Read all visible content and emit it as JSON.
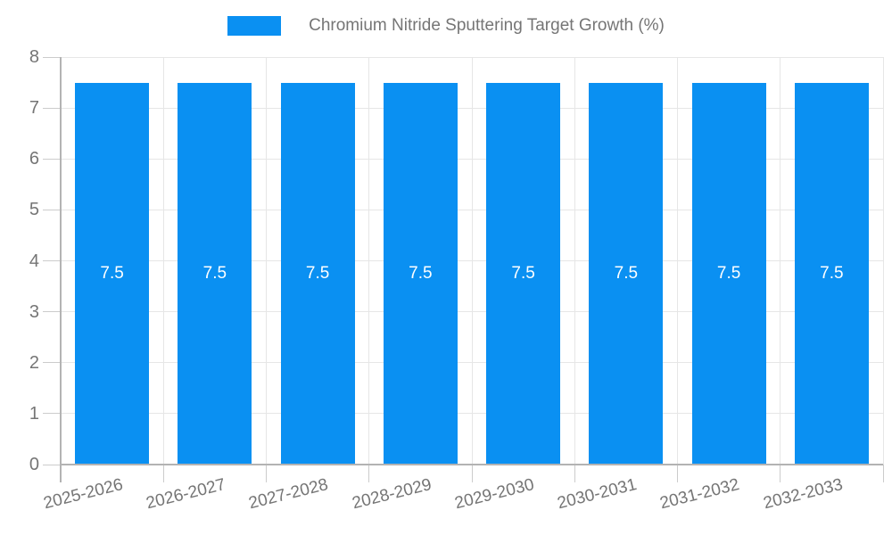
{
  "legend": {
    "label": "Chromium Nitride Sputtering Target Growth (%)",
    "swatch_color": "#0a90f2"
  },
  "chart_data": {
    "type": "bar",
    "title": "Chromium Nitride Sputtering Target Growth (%)",
    "categories": [
      "2025-2026",
      "2026-2027",
      "2027-2028",
      "2028-2029",
      "2029-2030",
      "2030-2031",
      "2031-2032",
      "2032-2033"
    ],
    "values": [
      7.5,
      7.5,
      7.5,
      7.5,
      7.5,
      7.5,
      7.5,
      7.5
    ],
    "bar_labels": [
      "7.5",
      "7.5",
      "7.5",
      "7.5",
      "7.5",
      "7.5",
      "7.5",
      "7.5"
    ],
    "xlabel": "",
    "ylabel": "",
    "ylim": [
      0,
      8
    ],
    "yticks": [
      0,
      1,
      2,
      3,
      4,
      5,
      6,
      7,
      8
    ],
    "grid": true,
    "legend_position": "top",
    "bar_color": "#0a90f2",
    "bar_label_color": "#ffffff",
    "axis_text_color": "#757575",
    "gridline_color": "#e6e6e6",
    "tick_color": "#cccccc",
    "axis_line_color": "#b3b3b3"
  }
}
